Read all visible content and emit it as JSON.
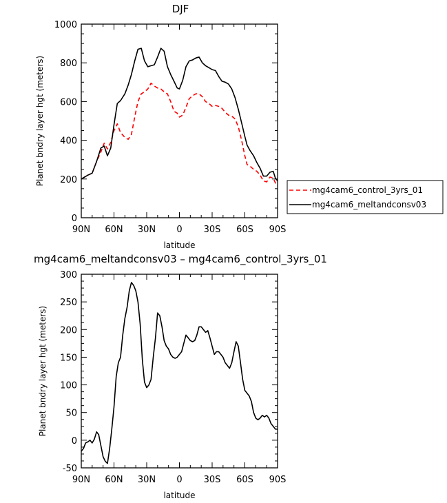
{
  "chart_data": [
    {
      "type": "line",
      "title": "DJF",
      "xlabel": "latitude",
      "ylabel": "Planet bndry layer hgt (meters)",
      "x_tick_labels": [
        "90N",
        "60N",
        "30N",
        "0",
        "30S",
        "60S",
        "90S"
      ],
      "x_tick_values": [
        90,
        60,
        30,
        0,
        -30,
        -60,
        -90
      ],
      "xlim": [
        90,
        -90
      ],
      "ylim": [
        0,
        1000
      ],
      "y_ticks": [
        0,
        200,
        400,
        600,
        800,
        1000
      ],
      "grid": false,
      "legend_position": "outside-right",
      "series": [
        {
          "name": "mg4cam6_control_3yrs_01",
          "color": "#ff0000",
          "dash": "dashed",
          "x": [
            90,
            87,
            84,
            80,
            76,
            72,
            69,
            66,
            63,
            60,
            57,
            54,
            50,
            47,
            44,
            41,
            38,
            35,
            32,
            29,
            26,
            23,
            20,
            17,
            14,
            11,
            8,
            5,
            2,
            0,
            -3,
            -6,
            -9,
            -12,
            -15,
            -18,
            -21,
            -24,
            -27,
            -30,
            -33,
            -36,
            -39,
            -42,
            -45,
            -48,
            -51,
            -54,
            -57,
            -60,
            -62,
            -65,
            -68,
            -71,
            -74,
            -77,
            -80,
            -83,
            -86,
            -88,
            -90
          ],
          "y": [
            200,
            210,
            220,
            230,
            290,
            340,
            385,
            355,
            390,
            450,
            485,
            440,
            415,
            405,
            430,
            520,
            600,
            640,
            650,
            665,
            695,
            680,
            670,
            665,
            650,
            640,
            600,
            550,
            540,
            520,
            530,
            570,
            615,
            630,
            640,
            640,
            625,
            600,
            590,
            575,
            580,
            575,
            565,
            545,
            530,
            525,
            510,
            470,
            400,
            320,
            275,
            265,
            250,
            240,
            220,
            190,
            185,
            210,
            205,
            180,
            165
          ]
        },
        {
          "name": "mg4cam6_meltandconsv03",
          "color": "#000000",
          "dash": "solid",
          "x": [
            90,
            87,
            84,
            80,
            76,
            72,
            69,
            66,
            63,
            60,
            57,
            54,
            50,
            47,
            44,
            41,
            38,
            35,
            32,
            29,
            26,
            23,
            20,
            17,
            14,
            11,
            8,
            5,
            2,
            0,
            -3,
            -6,
            -9,
            -12,
            -15,
            -18,
            -21,
            -24,
            -27,
            -30,
            -33,
            -36,
            -39,
            -42,
            -45,
            -48,
            -51,
            -54,
            -57,
            -60,
            -62,
            -65,
            -68,
            -71,
            -74,
            -77,
            -80,
            -83,
            -86,
            -88,
            -90
          ],
          "y": [
            200,
            210,
            220,
            230,
            290,
            360,
            370,
            320,
            360,
            480,
            590,
            605,
            640,
            685,
            740,
            810,
            870,
            875,
            810,
            780,
            785,
            790,
            830,
            875,
            860,
            780,
            740,
            705,
            670,
            665,
            710,
            780,
            810,
            815,
            825,
            830,
            800,
            785,
            775,
            765,
            760,
            730,
            705,
            700,
            690,
            665,
            620,
            560,
            490,
            420,
            375,
            345,
            320,
            285,
            255,
            215,
            215,
            235,
            240,
            205,
            190
          ]
        }
      ]
    },
    {
      "type": "line",
      "title": "mg4cam6_meltandconsv03 – mg4cam6_control_3yrs_01",
      "xlabel": "latitude",
      "ylabel": "Planet bndry layer hgt (meters)",
      "x_tick_labels": [
        "90N",
        "60N",
        "30N",
        "0",
        "30S",
        "60S",
        "90S"
      ],
      "x_tick_values": [
        90,
        60,
        30,
        0,
        -30,
        -60,
        -90
      ],
      "xlim": [
        90,
        -90
      ],
      "ylim": [
        -50,
        300
      ],
      "y_ticks": [
        -50,
        0,
        50,
        100,
        150,
        200,
        250,
        300
      ],
      "grid": false,
      "series": [
        {
          "color": "#000000",
          "dash": "solid",
          "x": [
            90,
            88,
            86,
            84,
            82,
            80,
            78,
            76,
            74,
            72,
            70,
            68,
            66,
            64,
            62,
            60,
            58,
            56,
            54,
            52,
            50,
            48,
            46,
            44,
            42,
            40,
            38,
            36,
            34,
            32,
            30,
            28,
            26,
            24,
            22,
            20,
            18,
            16,
            14,
            12,
            10,
            8,
            6,
            4,
            2,
            0,
            -2,
            -4,
            -6,
            -8,
            -10,
            -12,
            -14,
            -16,
            -18,
            -20,
            -22,
            -24,
            -26,
            -28,
            -30,
            -32,
            -34,
            -36,
            -38,
            -40,
            -42,
            -44,
            -46,
            -48,
            -50,
            -52,
            -54,
            -56,
            -58,
            -60,
            -62,
            -64,
            -66,
            -68,
            -70,
            -72,
            -74,
            -76,
            -78,
            -80,
            -82,
            -84,
            -86,
            -88,
            -90
          ],
          "y": [
            -20,
            -15,
            -5,
            -3,
            0,
            -5,
            2,
            15,
            10,
            -10,
            -30,
            -38,
            -42,
            -15,
            20,
            60,
            115,
            140,
            150,
            190,
            220,
            240,
            270,
            285,
            280,
            270,
            250,
            210,
            145,
            105,
            95,
            100,
            110,
            150,
            185,
            230,
            225,
            205,
            180,
            170,
            165,
            155,
            150,
            148,
            150,
            155,
            160,
            175,
            190,
            185,
            180,
            178,
            180,
            190,
            205,
            205,
            200,
            195,
            198,
            185,
            170,
            155,
            160,
            160,
            155,
            150,
            140,
            135,
            130,
            140,
            160,
            178,
            170,
            140,
            110,
            90,
            85,
            80,
            70,
            50,
            40,
            37,
            40,
            45,
            42,
            45,
            40,
            30,
            25,
            20,
            20
          ]
        }
      ]
    }
  ]
}
